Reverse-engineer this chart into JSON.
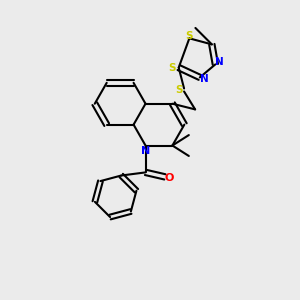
{
  "bg_color": "#ebebeb",
  "bond_color": "#000000",
  "N_color": "#0000ff",
  "S_color": "#cccc00",
  "O_color": "#ff0000",
  "line_width": 1.5,
  "figsize": [
    3.0,
    3.0
  ],
  "dpi": 100,
  "xlim": [
    0,
    10
  ],
  "ylim": [
    0,
    10
  ]
}
